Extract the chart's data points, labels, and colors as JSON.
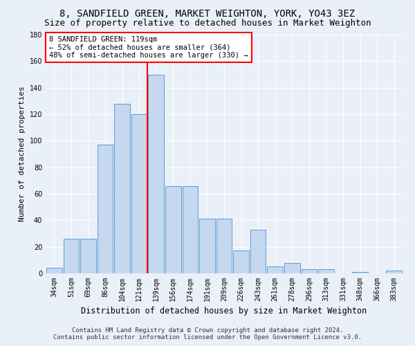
{
  "title": "8, SANDFIELD GREEN, MARKET WEIGHTON, YORK, YO43 3EZ",
  "subtitle": "Size of property relative to detached houses in Market Weighton",
  "xlabel": "Distribution of detached houses by size in Market Weighton",
  "ylabel": "Number of detached properties",
  "categories": [
    "34sqm",
    "51sqm",
    "69sqm",
    "86sqm",
    "104sqm",
    "121sqm",
    "139sqm",
    "156sqm",
    "174sqm",
    "191sqm",
    "209sqm",
    "226sqm",
    "243sqm",
    "261sqm",
    "278sqm",
    "296sqm",
    "313sqm",
    "331sqm",
    "348sqm",
    "366sqm",
    "383sqm"
  ],
  "values": [
    4,
    26,
    26,
    97,
    128,
    120,
    150,
    66,
    66,
    41,
    41,
    17,
    33,
    5,
    8,
    3,
    3,
    0,
    1,
    0,
    2
  ],
  "bar_color": "#c5d8f0",
  "bar_edge_color": "#5b9bd5",
  "highlight_line_index": 6,
  "highlight_line_color": "red",
  "annotation_text": "8 SANDFIELD GREEN: 119sqm\n← 52% of detached houses are smaller (364)\n48% of semi-detached houses are larger (330) →",
  "annotation_box_color": "white",
  "annotation_box_edge_color": "red",
  "ylim": [
    0,
    180
  ],
  "yticks": [
    0,
    20,
    40,
    60,
    80,
    100,
    120,
    140,
    160,
    180
  ],
  "footer_line1": "Contains HM Land Registry data © Crown copyright and database right 2024.",
  "footer_line2": "Contains public sector information licensed under the Open Government Licence v3.0.",
  "background_color": "#eaf0f8",
  "grid_color": "white",
  "title_fontsize": 10,
  "subtitle_fontsize": 9,
  "tick_fontsize": 7,
  "ylabel_fontsize": 8,
  "xlabel_fontsize": 8.5,
  "footer_fontsize": 6.5,
  "annotation_fontsize": 7.5
}
